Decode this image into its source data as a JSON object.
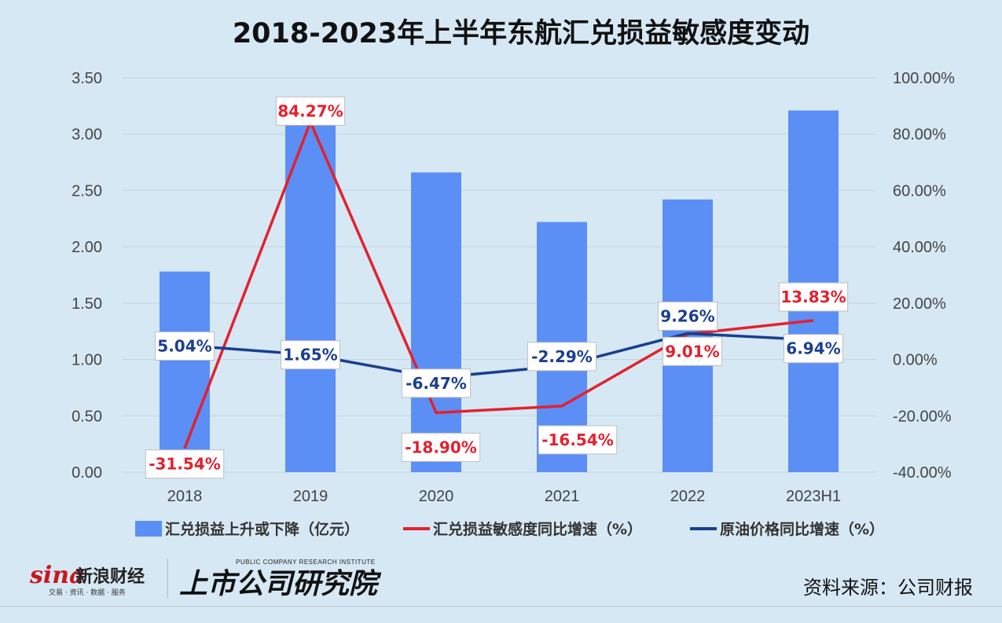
{
  "chart_data": {
    "type": "bar",
    "title": "2018-2023年上半年东航汇兑损益敏感度变动",
    "categories": [
      "2018",
      "2019",
      "2020",
      "2021",
      "2022",
      "2023H1"
    ],
    "y_left": {
      "min": 0,
      "max": 3.5,
      "ticks": [
        "0.00",
        "0.50",
        "1.00",
        "1.50",
        "2.00",
        "2.50",
        "3.00",
        "3.50"
      ]
    },
    "y_right": {
      "min": -40,
      "max": 100,
      "ticks": [
        "-40.00%",
        "-20.00%",
        "0.00%",
        "20.00%",
        "40.00%",
        "60.00%",
        "80.00%",
        "100.00%"
      ]
    },
    "series": [
      {
        "name": "汇兑损益上升或下降（亿元）",
        "type": "bar",
        "axis": "left",
        "color": "#5b8ff5",
        "values": [
          1.78,
          3.28,
          2.66,
          2.22,
          2.42,
          3.21
        ]
      },
      {
        "name": "汇兑损益敏感度同比增速（%）",
        "type": "line",
        "axis": "right",
        "color": "#e3212f",
        "values": [
          -31.54,
          84.27,
          -18.9,
          -16.54,
          9.01,
          13.83
        ],
        "labels": [
          "-31.54%",
          "84.27%",
          "-18.90%",
          "-16.54%",
          "9.01%",
          "13.83%"
        ]
      },
      {
        "name": "原油价格同比增速（%）",
        "type": "line",
        "axis": "right",
        "color": "#1a3f8f",
        "values": [
          5.04,
          1.65,
          -6.47,
          -2.29,
          9.26,
          6.94
        ],
        "labels": [
          "5.04%",
          "1.65%",
          "-6.47%",
          "-2.29%",
          "9.26%",
          "6.94%"
        ]
      }
    ],
    "legend_position": "bottom",
    "grid": true
  },
  "footer": {
    "source": "资料来源：公司财报",
    "logo_sina": "sina",
    "logo_sina_cn": "新浪财经",
    "logo_sina_sub": "交易 · 资讯 · 数据 · 服务",
    "logo_institute": "上市公司研究院",
    "logo_institute_en": "PUBLIC COMPANY RESEARCH INSTITUTE"
  }
}
